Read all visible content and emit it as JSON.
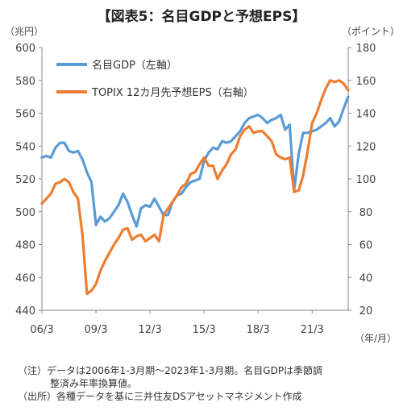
{
  "title": "【図表5：名目GDPと予想EPS】",
  "chart_data": {
    "type": "line",
    "left_unit": "（兆円）",
    "right_unit": "（ポイント）",
    "x_unit": "（年/月）",
    "x_tick_labels": [
      "06/3",
      "09/3",
      "12/3",
      "15/3",
      "18/3",
      "21/3"
    ],
    "x_tick_quarters": [
      0,
      12,
      24,
      36,
      48,
      60
    ],
    "x_range": [
      0,
      68
    ],
    "left_axis": {
      "min": 440,
      "max": 600,
      "ticks": [
        440,
        460,
        480,
        500,
        520,
        540,
        560,
        580,
        600
      ]
    },
    "right_axis": {
      "min": 20,
      "max": 180,
      "ticks": [
        20,
        40,
        60,
        80,
        100,
        120,
        140,
        160,
        180
      ]
    },
    "grid": false,
    "legend_position": "top-left",
    "series": [
      {
        "name": "名目GDP（左軸）",
        "axis": "left",
        "color": "#5b9bd5",
        "x": [
          0,
          1,
          2,
          3,
          4,
          5,
          6,
          7,
          8,
          9,
          10,
          11,
          12,
          13,
          14,
          15,
          16,
          17,
          18,
          19,
          20,
          21,
          22,
          23,
          24,
          25,
          26,
          27,
          28,
          29,
          30,
          31,
          32,
          33,
          34,
          35,
          36,
          37,
          38,
          39,
          40,
          41,
          42,
          43,
          44,
          45,
          46,
          47,
          48,
          49,
          50,
          51,
          52,
          53,
          54,
          55,
          56,
          57,
          58,
          59,
          60,
          61,
          62,
          63,
          64,
          65,
          66,
          67,
          68
        ],
        "values": [
          533,
          534,
          533,
          539,
          542,
          542,
          537,
          536,
          537,
          532,
          524,
          518,
          492,
          497,
          494,
          496,
          500,
          504,
          511,
          506,
          498,
          491,
          502,
          504,
          503,
          508,
          503,
          498,
          498,
          506,
          510,
          511,
          515,
          518,
          519,
          520,
          531,
          536,
          539,
          538,
          543,
          542,
          543,
          546,
          549,
          554,
          557,
          558,
          559,
          557,
          554,
          556,
          557,
          559,
          550,
          553,
          513,
          535,
          548,
          548,
          549,
          550,
          552,
          554,
          557,
          552,
          555,
          563,
          570
        ]
      },
      {
        "name": "TOPIX 12カ月先予想EPS（右軸）",
        "axis": "right",
        "color": "#ed7d31",
        "x": [
          0,
          1,
          2,
          3,
          4,
          5,
          6,
          7,
          8,
          9,
          10,
          11,
          12,
          13,
          14,
          15,
          16,
          17,
          18,
          19,
          20,
          21,
          22,
          23,
          24,
          25,
          26,
          27,
          28,
          29,
          30,
          31,
          32,
          33,
          34,
          35,
          36,
          37,
          38,
          39,
          40,
          41,
          42,
          43,
          44,
          45,
          46,
          47,
          48,
          49,
          50,
          51,
          52,
          53,
          54,
          55,
          56,
          57,
          58,
          59,
          60,
          61,
          62,
          63,
          64,
          65,
          66,
          67,
          68
        ],
        "values": [
          85,
          88,
          91,
          97,
          98,
          100,
          98,
          92,
          88,
          66,
          30,
          32,
          36,
          44,
          50,
          55,
          60,
          64,
          69,
          70,
          63,
          65,
          66,
          62,
          64,
          66,
          62,
          78,
          82,
          86,
          90,
          95,
          97,
          103,
          104,
          109,
          113,
          108,
          108,
          100,
          105,
          109,
          115,
          118,
          126,
          130,
          132,
          128,
          129,
          129,
          126,
          123,
          115,
          113,
          112,
          113,
          92,
          93,
          102,
          117,
          134,
          140,
          148,
          155,
          160,
          159,
          160,
          158,
          154
        ]
      }
    ]
  },
  "notes": [
    "（注）データは2006年1-3月期～2023年1-3月期。名目GDPは季節調",
    "整済み年率換算値。",
    "（出所）各種データを基に三井住友DSアセットマネジメント作成"
  ]
}
